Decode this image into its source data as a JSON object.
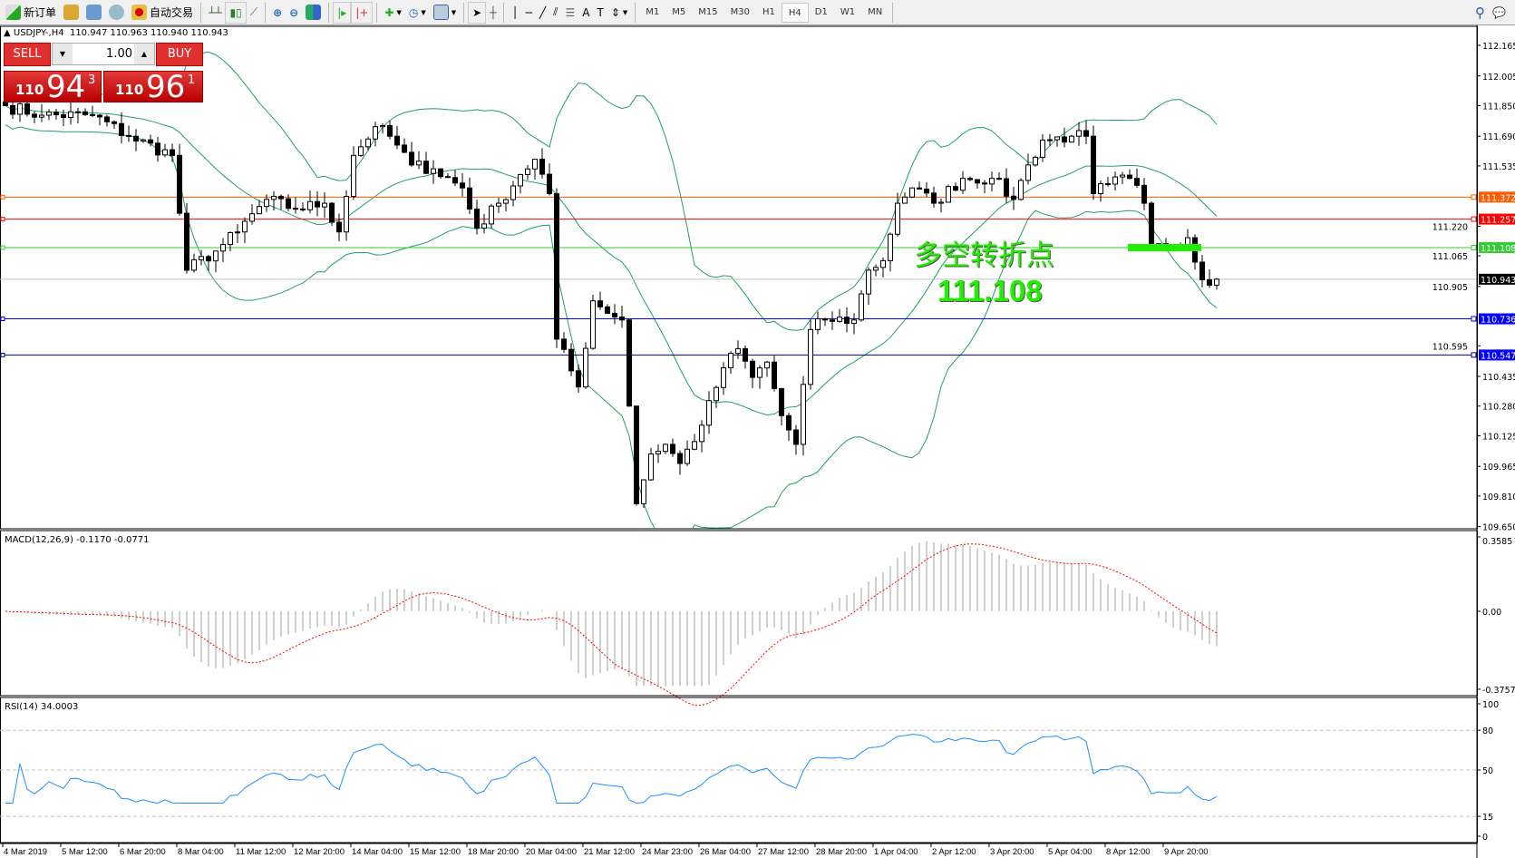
{
  "toolbar": {
    "new_order": "新订单",
    "auto_trading": "自动交易",
    "timeframes": [
      "M1",
      "M5",
      "M15",
      "M30",
      "H1",
      "H4",
      "D1",
      "W1",
      "MN"
    ],
    "active_timeframe": "H4"
  },
  "chart": {
    "title": "USDJPY-,H4",
    "ohlc": "110.947 110.963 110.940 110.943",
    "trade": {
      "sell": "SELL",
      "buy": "BUY",
      "lot": "1.00",
      "bid_big": "110",
      "bid_main": "94",
      "bid_pip": "3",
      "ask_big": "110",
      "ask_main": "96",
      "ask_pip": "1"
    },
    "annotation": {
      "text": "多空转折点",
      "price": "111.108"
    },
    "price_ticks": [
      "112.165",
      "112.005",
      "111.850",
      "111.690",
      "111.535",
      "111.220",
      "111.065",
      "110.905",
      "110.595",
      "110.435",
      "110.280",
      "110.125",
      "109.965",
      "109.810",
      "109.650"
    ],
    "hlines": [
      {
        "price": "111.372",
        "color": "#ff5a00"
      },
      {
        "price": "111.257",
        "color": "#ff0000"
      },
      {
        "price": "111.108",
        "color": "#33cc33"
      },
      {
        "price": "110.943",
        "color": "#000000",
        "line": "#c0c0c0"
      },
      {
        "price": "110.736",
        "color": "#0000ff"
      },
      {
        "price": "110.547",
        "color": "#0000ff",
        "line": "#000080"
      }
    ],
    "time_labels": [
      "4 Mar 2019",
      "5 Mar 12:00",
      "6 Mar 20:00",
      "8 Mar 04:00",
      "11 Mar 12:00",
      "12 Mar 20:00",
      "14 Mar 04:00",
      "15 Mar 12:00",
      "18 Mar 20:00",
      "20 Mar 04:00",
      "21 Mar 12:00",
      "24 Mar 23:00",
      "26 Mar 04:00",
      "27 Mar 12:00",
      "28 Mar 20:00",
      "1 Apr 04:00",
      "2 Apr 12:00",
      "3 Apr 20:00",
      "5 Apr 04:00",
      "8 Apr 12:00",
      "9 Apr 20:00"
    ],
    "macd": {
      "label": "MACD(12,26,9) -0.1170 -0.0771",
      "ticks": [
        "0.3585",
        "0.00",
        "-0.3757"
      ]
    },
    "rsi": {
      "label": "RSI(14) 34.0003",
      "ticks": [
        "100",
        "80",
        "50",
        "15",
        "0"
      ]
    }
  },
  "chart_data": {
    "type": "candlestick",
    "symbol": "USDJPY",
    "timeframe": "H4",
    "ylim": [
      109.65,
      112.165
    ],
    "indicators": [
      "Bollinger Bands (20,2)",
      "MACD(12,26,9)",
      "RSI(14)"
    ],
    "approx_close_path": [
      [
        0,
        111.85
      ],
      [
        5,
        111.8
      ],
      [
        12,
        111.8
      ],
      [
        17,
        111.69
      ],
      [
        23,
        111.59
      ],
      [
        25,
        110.99
      ],
      [
        29,
        111.09
      ],
      [
        32,
        111.19
      ],
      [
        36,
        111.36
      ],
      [
        40,
        111.31
      ],
      [
        44,
        111.34
      ],
      [
        46,
        111.19
      ],
      [
        48,
        111.59
      ],
      [
        51,
        111.74
      ],
      [
        53,
        111.69
      ],
      [
        56,
        111.54
      ],
      [
        59,
        111.52
      ],
      [
        63,
        111.42
      ],
      [
        65,
        111.21
      ],
      [
        68,
        111.34
      ],
      [
        71,
        111.49
      ],
      [
        73,
        111.57
      ],
      [
        75,
        111.39
      ],
      [
        76,
        110.63
      ],
      [
        79,
        110.38
      ],
      [
        81,
        110.83
      ],
      [
        85,
        110.73
      ],
      [
        86,
        110.28
      ],
      [
        87,
        109.77
      ],
      [
        89,
        110.03
      ],
      [
        91,
        110.08
      ],
      [
        93,
        109.98
      ],
      [
        96,
        110.18
      ],
      [
        99,
        110.48
      ],
      [
        101,
        110.58
      ],
      [
        103,
        110.43
      ],
      [
        105,
        110.51
      ],
      [
        107,
        110.23
      ],
      [
        109,
        110.08
      ],
      [
        111,
        110.68
      ],
      [
        113,
        110.73
      ],
      [
        117,
        110.73
      ],
      [
        119,
        110.99
      ],
      [
        121,
        111.04
      ],
      [
        123,
        111.34
      ],
      [
        125,
        111.42
      ],
      [
        128,
        111.34
      ],
      [
        132,
        111.47
      ],
      [
        136,
        111.47
      ],
      [
        139,
        111.36
      ],
      [
        141,
        111.54
      ],
      [
        143,
        111.67
      ],
      [
        147,
        111.69
      ],
      [
        149,
        111.69
      ],
      [
        150,
        111.39
      ],
      [
        152,
        111.44
      ],
      [
        155,
        111.47
      ],
      [
        157,
        111.34
      ],
      [
        158,
        111.11
      ],
      [
        160,
        111.11
      ],
      [
        163,
        111.16
      ],
      [
        165,
        110.94
      ],
      [
        167,
        110.943
      ]
    ]
  }
}
